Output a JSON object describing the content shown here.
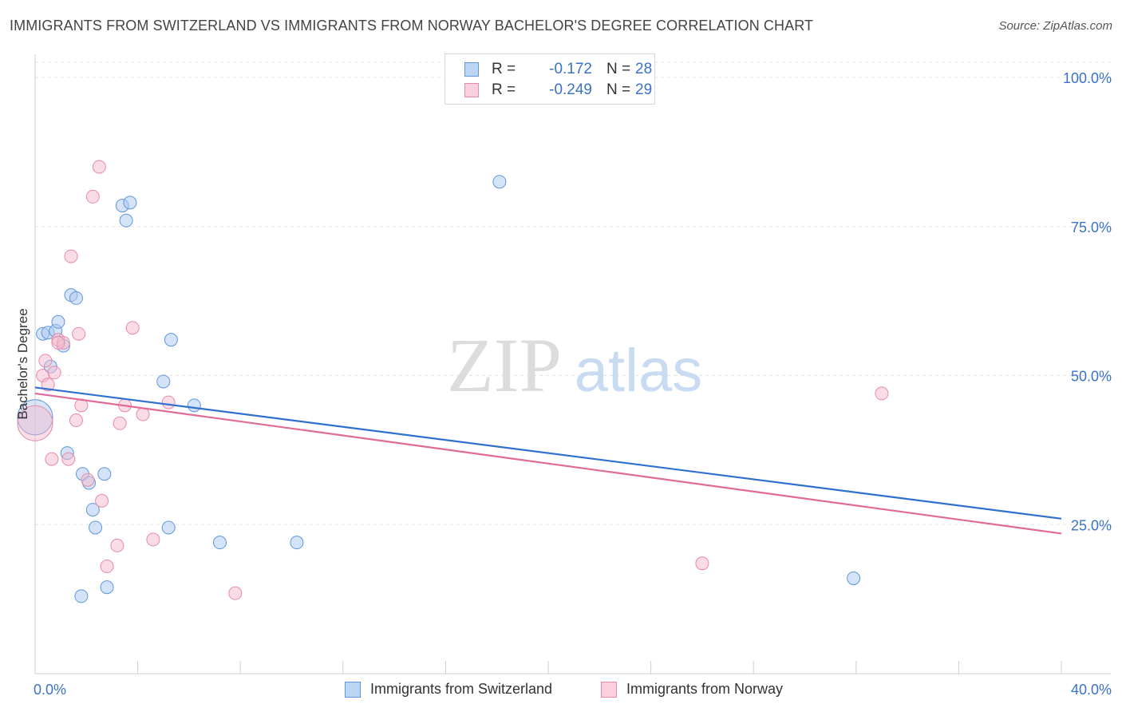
{
  "header": {
    "title": "IMMIGRANTS FROM SWITZERLAND VS IMMIGRANTS FROM NORWAY BACHELOR'S DEGREE CORRELATION CHART",
    "source": "Source: ZipAtlas.com"
  },
  "stats": {
    "swiss": {
      "r_label": "R =",
      "r_value": "-0.172",
      "n_label": "N =",
      "n_value": "28"
    },
    "norway": {
      "r_label": "R =",
      "r_value": "-0.249",
      "n_label": "N =",
      "n_value": "29"
    }
  },
  "watermark": {
    "zip": "ZIP",
    "atlas": "atlas"
  },
  "colors": {
    "swiss_fill": "#a9c8f0",
    "swiss_stroke": "#5f96dc",
    "swiss_line": "#2f6fcf",
    "norway_fill": "#f6b9cd",
    "norway_stroke": "#e68aa8",
    "norway_line": "#e06a98",
    "tick_label": "#3a72c8",
    "grid": "#e3e3e3"
  },
  "chart_data": {
    "type": "scatter",
    "title": "IMMIGRANTS FROM SWITZERLAND VS IMMIGRANTS FROM NORWAY BACHELOR'S DEGREE CORRELATION CHART",
    "xlabel": "",
    "ylabel": "Bachelor's Degree",
    "xlim": [
      0,
      40
    ],
    "ylim": [
      0,
      100
    ],
    "x_tick_labels": [
      "0.0%",
      "40.0%"
    ],
    "y_ticks": [
      25,
      50,
      75,
      100
    ],
    "y_tick_labels": [
      "25.0%",
      "50.0%",
      "75.0%",
      "100.0%"
    ],
    "grid": true,
    "legend_position": "bottom-center",
    "series": [
      {
        "name": "Immigrants from Switzerland",
        "color_key": "swiss",
        "points": [
          {
            "x": 0.3,
            "y": 57,
            "big": false
          },
          {
            "x": 0.5,
            "y": 57.2,
            "big": false
          },
          {
            "x": 0.8,
            "y": 57.5,
            "big": false
          },
          {
            "x": 0.9,
            "y": 59,
            "big": false
          },
          {
            "x": 1.1,
            "y": 55,
            "big": false
          },
          {
            "x": 1.4,
            "y": 63.5,
            "big": false
          },
          {
            "x": 1.6,
            "y": 63,
            "big": false
          },
          {
            "x": 0.6,
            "y": 51.5,
            "big": false
          },
          {
            "x": 0.0,
            "y": 43,
            "big": true
          },
          {
            "x": 1.25,
            "y": 37,
            "big": false
          },
          {
            "x": 1.85,
            "y": 33.5,
            "big": false
          },
          {
            "x": 2.1,
            "y": 32,
            "big": false
          },
          {
            "x": 2.7,
            "y": 33.5,
            "big": false
          },
          {
            "x": 2.25,
            "y": 27.5,
            "big": false
          },
          {
            "x": 2.35,
            "y": 24.5,
            "big": false
          },
          {
            "x": 1.8,
            "y": 13,
            "big": false
          },
          {
            "x": 2.8,
            "y": 14.5,
            "big": false
          },
          {
            "x": 3.4,
            "y": 78.5,
            "big": false
          },
          {
            "x": 3.55,
            "y": 76,
            "big": false
          },
          {
            "x": 3.7,
            "y": 79,
            "big": false
          },
          {
            "x": 5.0,
            "y": 49,
            "big": false
          },
          {
            "x": 5.3,
            "y": 56,
            "big": false
          },
          {
            "x": 6.2,
            "y": 45,
            "big": false
          },
          {
            "x": 5.2,
            "y": 24.5,
            "big": false
          },
          {
            "x": 7.2,
            "y": 22,
            "big": false
          },
          {
            "x": 10.2,
            "y": 22,
            "big": false
          },
          {
            "x": 18.1,
            "y": 82.5,
            "big": false
          },
          {
            "x": 31.9,
            "y": 16,
            "big": false
          }
        ],
        "trend": {
          "x": [
            0,
            40
          ],
          "y": [
            48,
            26
          ]
        }
      },
      {
        "name": "Immigrants from Norway",
        "color_key": "norway",
        "points": [
          {
            "x": 0.0,
            "y": 42,
            "big": true
          },
          {
            "x": 0.3,
            "y": 50,
            "big": false
          },
          {
            "x": 0.4,
            "y": 52.5,
            "big": false
          },
          {
            "x": 0.5,
            "y": 48.5,
            "big": false
          },
          {
            "x": 0.65,
            "y": 36,
            "big": false
          },
          {
            "x": 0.75,
            "y": 50.5,
            "big": false
          },
          {
            "x": 0.9,
            "y": 56,
            "big": false
          },
          {
            "x": 1.1,
            "y": 55.5,
            "big": false
          },
          {
            "x": 1.3,
            "y": 36,
            "big": false
          },
          {
            "x": 1.4,
            "y": 70,
            "big": false
          },
          {
            "x": 1.6,
            "y": 42.5,
            "big": false
          },
          {
            "x": 1.7,
            "y": 57,
            "big": false
          },
          {
            "x": 1.8,
            "y": 45,
            "big": false
          },
          {
            "x": 2.05,
            "y": 32.5,
            "big": false
          },
          {
            "x": 2.25,
            "y": 80,
            "big": false
          },
          {
            "x": 2.5,
            "y": 85,
            "big": false
          },
          {
            "x": 2.6,
            "y": 29,
            "big": false
          },
          {
            "x": 2.8,
            "y": 18,
            "big": false
          },
          {
            "x": 3.2,
            "y": 21.5,
            "big": false
          },
          {
            "x": 3.3,
            "y": 42,
            "big": false
          },
          {
            "x": 3.5,
            "y": 45,
            "big": false
          },
          {
            "x": 3.8,
            "y": 58,
            "big": false
          },
          {
            "x": 4.2,
            "y": 43.5,
            "big": false
          },
          {
            "x": 4.6,
            "y": 22.5,
            "big": false
          },
          {
            "x": 5.2,
            "y": 45.5,
            "big": false
          },
          {
            "x": 7.8,
            "y": 13.5,
            "big": false
          },
          {
            "x": 0.9,
            "y": 55.5,
            "big": false
          },
          {
            "x": 26.0,
            "y": 18.5,
            "big": false
          },
          {
            "x": 33.0,
            "y": 47,
            "big": false
          }
        ],
        "trend": {
          "x": [
            0,
            40
          ],
          "y": [
            47,
            23.5
          ]
        }
      }
    ]
  },
  "legend": {
    "swiss_label": "Immigrants from Switzerland",
    "norway_label": "Immigrants from Norway"
  }
}
